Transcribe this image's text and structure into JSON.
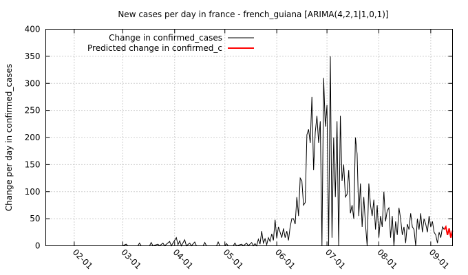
{
  "chart_data": {
    "type": "line",
    "title": "New cases per day in france - french_guiana [ARIMA(4,2,1|1,0,1)]",
    "xlabel": "",
    "ylabel": "Change per day in confirmed_cases",
    "ylim": [
      0,
      400
    ],
    "xlim": [
      "2020-01-15",
      "2020-09-14"
    ],
    "yticks": [
      0,
      50,
      100,
      150,
      200,
      250,
      300,
      350,
      400
    ],
    "xticks": [
      {
        "date": "2020-02-01",
        "label": "02-01"
      },
      {
        "date": "2020-03-01",
        "label": "03-01"
      },
      {
        "date": "2020-04-01",
        "label": "04-01"
      },
      {
        "date": "2020-05-01",
        "label": "05-01"
      },
      {
        "date": "2020-06-01",
        "label": "06-01"
      },
      {
        "date": "2020-07-01",
        "label": "07-01"
      },
      {
        "date": "2020-08-01",
        "label": "08-01"
      },
      {
        "date": "2020-09-01",
        "label": "09-01"
      }
    ],
    "grid": true,
    "legend_position": "top-right",
    "series": [
      {
        "name": "Change in confirmed_cases",
        "color": "#000000",
        "points": [
          [
            "2020-01-15",
            0
          ],
          [
            "2020-03-01",
            0
          ],
          [
            "2020-03-03",
            3
          ],
          [
            "2020-03-04",
            0
          ],
          [
            "2020-03-10",
            0
          ],
          [
            "2020-03-11",
            5
          ],
          [
            "2020-03-12",
            0
          ],
          [
            "2020-03-17",
            0
          ],
          [
            "2020-03-18",
            6
          ],
          [
            "2020-03-19",
            0
          ],
          [
            "2020-03-22",
            3
          ],
          [
            "2020-03-23",
            0
          ],
          [
            "2020-03-25",
            5
          ],
          [
            "2020-03-26",
            0
          ],
          [
            "2020-03-29",
            8
          ],
          [
            "2020-03-30",
            0
          ],
          [
            "2020-04-02",
            15
          ],
          [
            "2020-04-03",
            2
          ],
          [
            "2020-04-04",
            9
          ],
          [
            "2020-04-05",
            0
          ],
          [
            "2020-04-07",
            11
          ],
          [
            "2020-04-08",
            0
          ],
          [
            "2020-04-10",
            5
          ],
          [
            "2020-04-11",
            0
          ],
          [
            "2020-04-13",
            7
          ],
          [
            "2020-04-14",
            0
          ],
          [
            "2020-04-18",
            0
          ],
          [
            "2020-04-19",
            6
          ],
          [
            "2020-04-20",
            0
          ],
          [
            "2020-04-26",
            0
          ],
          [
            "2020-04-27",
            7
          ],
          [
            "2020-04-28",
            0
          ],
          [
            "2020-05-01",
            0
          ],
          [
            "2020-05-02",
            4
          ],
          [
            "2020-05-03",
            0
          ],
          [
            "2020-05-06",
            0
          ],
          [
            "2020-05-07",
            5
          ],
          [
            "2020-05-08",
            0
          ],
          [
            "2020-05-11",
            3
          ],
          [
            "2020-05-12",
            0
          ],
          [
            "2020-05-14",
            5
          ],
          [
            "2020-05-15",
            0
          ],
          [
            "2020-05-17",
            6
          ],
          [
            "2020-05-18",
            0
          ],
          [
            "2020-05-19",
            4
          ],
          [
            "2020-05-20",
            0
          ],
          [
            "2020-05-21",
            12
          ],
          [
            "2020-05-22",
            3
          ],
          [
            "2020-05-23",
            27
          ],
          [
            "2020-05-24",
            5
          ],
          [
            "2020-05-25",
            13
          ],
          [
            "2020-05-26",
            2
          ],
          [
            "2020-05-27",
            15
          ],
          [
            "2020-05-28",
            8
          ],
          [
            "2020-05-29",
            22
          ],
          [
            "2020-05-30",
            10
          ],
          [
            "2020-05-31",
            48
          ],
          [
            "2020-06-01",
            14
          ],
          [
            "2020-06-02",
            35
          ],
          [
            "2020-06-03",
            25
          ],
          [
            "2020-06-04",
            15
          ],
          [
            "2020-06-05",
            32
          ],
          [
            "2020-06-06",
            15
          ],
          [
            "2020-06-07",
            27
          ],
          [
            "2020-06-08",
            10
          ],
          [
            "2020-06-09",
            35
          ],
          [
            "2020-06-10",
            50
          ],
          [
            "2020-06-11",
            50
          ],
          [
            "2020-06-12",
            40
          ],
          [
            "2020-06-13",
            90
          ],
          [
            "2020-06-14",
            55
          ],
          [
            "2020-06-15",
            125
          ],
          [
            "2020-06-16",
            120
          ],
          [
            "2020-06-17",
            75
          ],
          [
            "2020-06-18",
            80
          ],
          [
            "2020-06-19",
            205
          ],
          [
            "2020-06-20",
            215
          ],
          [
            "2020-06-21",
            190
          ],
          [
            "2020-06-22",
            275
          ],
          [
            "2020-06-23",
            140
          ],
          [
            "2020-06-24",
            210
          ],
          [
            "2020-06-25",
            240
          ],
          [
            "2020-06-26",
            190
          ],
          [
            "2020-06-27",
            230
          ],
          [
            "2020-06-28",
            0
          ],
          [
            "2020-06-29",
            310
          ],
          [
            "2020-06-30",
            220
          ],
          [
            "2020-07-01",
            260
          ],
          [
            "2020-07-02",
            0
          ],
          [
            "2020-07-03",
            350
          ],
          [
            "2020-07-04",
            15
          ],
          [
            "2020-07-05",
            200
          ],
          [
            "2020-07-06",
            90
          ],
          [
            "2020-07-07",
            230
          ],
          [
            "2020-07-08",
            0
          ],
          [
            "2020-07-09",
            240
          ],
          [
            "2020-07-10",
            120
          ],
          [
            "2020-07-11",
            150
          ],
          [
            "2020-07-12",
            90
          ],
          [
            "2020-07-13",
            95
          ],
          [
            "2020-07-14",
            140
          ],
          [
            "2020-07-15",
            60
          ],
          [
            "2020-07-16",
            75
          ],
          [
            "2020-07-17",
            50
          ],
          [
            "2020-07-18",
            200
          ],
          [
            "2020-07-19",
            170
          ],
          [
            "2020-07-20",
            55
          ],
          [
            "2020-07-21",
            115
          ],
          [
            "2020-07-22",
            35
          ],
          [
            "2020-07-23",
            90
          ],
          [
            "2020-07-24",
            40
          ],
          [
            "2020-07-25",
            0
          ],
          [
            "2020-07-26",
            115
          ],
          [
            "2020-07-27",
            75
          ],
          [
            "2020-07-28",
            55
          ],
          [
            "2020-07-29",
            85
          ],
          [
            "2020-07-30",
            30
          ],
          [
            "2020-07-31",
            75
          ],
          [
            "2020-08-01",
            15
          ],
          [
            "2020-08-02",
            55
          ],
          [
            "2020-08-03",
            35
          ],
          [
            "2020-08-04",
            100
          ],
          [
            "2020-08-05",
            45
          ],
          [
            "2020-08-06",
            65
          ],
          [
            "2020-08-07",
            70
          ],
          [
            "2020-08-08",
            15
          ],
          [
            "2020-08-09",
            55
          ],
          [
            "2020-08-10",
            0
          ],
          [
            "2020-08-11",
            45
          ],
          [
            "2020-08-12",
            20
          ],
          [
            "2020-08-13",
            70
          ],
          [
            "2020-08-14",
            50
          ],
          [
            "2020-08-15",
            20
          ],
          [
            "2020-08-16",
            35
          ],
          [
            "2020-08-17",
            5
          ],
          [
            "2020-08-18",
            40
          ],
          [
            "2020-08-19",
            30
          ],
          [
            "2020-08-20",
            60
          ],
          [
            "2020-08-21",
            35
          ],
          [
            "2020-08-22",
            30
          ],
          [
            "2020-08-23",
            0
          ],
          [
            "2020-08-24",
            50
          ],
          [
            "2020-08-25",
            30
          ],
          [
            "2020-08-26",
            60
          ],
          [
            "2020-08-27",
            25
          ],
          [
            "2020-08-28",
            50
          ],
          [
            "2020-08-29",
            40
          ],
          [
            "2020-08-30",
            25
          ],
          [
            "2020-08-31",
            55
          ],
          [
            "2020-09-01",
            35
          ],
          [
            "2020-09-02",
            45
          ],
          [
            "2020-09-03",
            25
          ],
          [
            "2020-09-04",
            20
          ],
          [
            "2020-09-05",
            5
          ],
          [
            "2020-09-06",
            25
          ],
          [
            "2020-09-07",
            15
          ],
          [
            "2020-09-08",
            35
          ],
          [
            "2020-09-09",
            30
          ]
        ]
      },
      {
        "name": "Predicted change in confirmed_c",
        "color": "#ff0000",
        "points": [
          [
            "2020-09-09",
            30
          ],
          [
            "2020-09-10",
            35
          ],
          [
            "2020-09-11",
            20
          ],
          [
            "2020-09-12",
            32
          ],
          [
            "2020-09-13",
            15
          ],
          [
            "2020-09-14",
            28
          ]
        ]
      }
    ]
  }
}
